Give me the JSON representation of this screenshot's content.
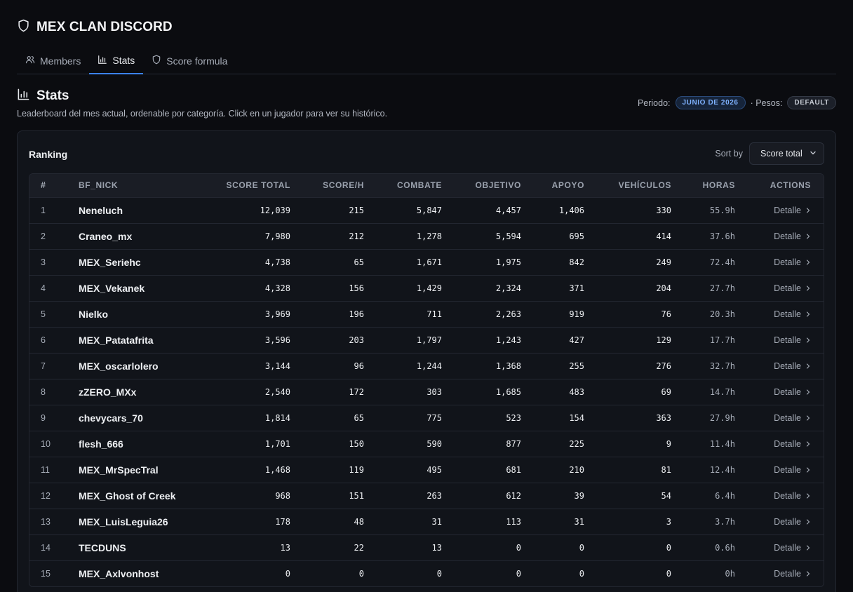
{
  "app": {
    "title": "MEX CLAN DISCORD",
    "icon": "shield-icon"
  },
  "tabs": [
    {
      "label": "Members",
      "icon": "users-icon",
      "active": false
    },
    {
      "label": "Stats",
      "icon": "bar-chart-icon",
      "active": true
    },
    {
      "label": "Score formula",
      "icon": "shield-icon",
      "active": false
    }
  ],
  "section": {
    "title": "Stats",
    "subtitle": "Leaderboard del mes actual, ordenable por categoría. Click en un jugador para ver su histórico.",
    "period_label": "Periodo:",
    "period_value": "JUNIO DE 2026",
    "weights_label": "· Pesos:",
    "weights_value": "DEFAULT"
  },
  "ranking": {
    "title": "Ranking",
    "sort_label": "Sort by",
    "sort_value": "Score total",
    "columns": [
      "#",
      "BF_NICK",
      "SCORE TOTAL",
      "SCORE/H",
      "COMBATE",
      "OBJETIVO",
      "APOYO",
      "VEHÍCULOS",
      "HORAS",
      "ACTIONS"
    ],
    "detail_label": "Detalle",
    "rows": [
      {
        "rank": "1",
        "nick": "Neneluch",
        "score": "12,039",
        "sh": "215",
        "comb": "5,847",
        "obj": "4,457",
        "apoyo": "1,406",
        "veh": "330",
        "horas": "55.9h"
      },
      {
        "rank": "2",
        "nick": "Craneo_mx",
        "score": "7,980",
        "sh": "212",
        "comb": "1,278",
        "obj": "5,594",
        "apoyo": "695",
        "veh": "414",
        "horas": "37.6h"
      },
      {
        "rank": "3",
        "nick": "MEX_Seriehc",
        "score": "4,738",
        "sh": "65",
        "comb": "1,671",
        "obj": "1,975",
        "apoyo": "842",
        "veh": "249",
        "horas": "72.4h"
      },
      {
        "rank": "4",
        "nick": "MEX_Vekanek",
        "score": "4,328",
        "sh": "156",
        "comb": "1,429",
        "obj": "2,324",
        "apoyo": "371",
        "veh": "204",
        "horas": "27.7h"
      },
      {
        "rank": "5",
        "nick": "Nielko",
        "score": "3,969",
        "sh": "196",
        "comb": "711",
        "obj": "2,263",
        "apoyo": "919",
        "veh": "76",
        "horas": "20.3h"
      },
      {
        "rank": "6",
        "nick": "MEX_Patatafrita",
        "score": "3,596",
        "sh": "203",
        "comb": "1,797",
        "obj": "1,243",
        "apoyo": "427",
        "veh": "129",
        "horas": "17.7h"
      },
      {
        "rank": "7",
        "nick": "MEX_oscarlolero",
        "score": "3,144",
        "sh": "96",
        "comb": "1,244",
        "obj": "1,368",
        "apoyo": "255",
        "veh": "276",
        "horas": "32.7h"
      },
      {
        "rank": "8",
        "nick": "zZERO_MXx",
        "score": "2,540",
        "sh": "172",
        "comb": "303",
        "obj": "1,685",
        "apoyo": "483",
        "veh": "69",
        "horas": "14.7h"
      },
      {
        "rank": "9",
        "nick": "chevycars_70",
        "score": "1,814",
        "sh": "65",
        "comb": "775",
        "obj": "523",
        "apoyo": "154",
        "veh": "363",
        "horas": "27.9h"
      },
      {
        "rank": "10",
        "nick": "flesh_666",
        "score": "1,701",
        "sh": "150",
        "comb": "590",
        "obj": "877",
        "apoyo": "225",
        "veh": "9",
        "horas": "11.4h"
      },
      {
        "rank": "11",
        "nick": "MEX_MrSpecTral",
        "score": "1,468",
        "sh": "119",
        "comb": "495",
        "obj": "681",
        "apoyo": "210",
        "veh": "81",
        "horas": "12.4h"
      },
      {
        "rank": "12",
        "nick": "MEX_Ghost of Creek",
        "score": "968",
        "sh": "151",
        "comb": "263",
        "obj": "612",
        "apoyo": "39",
        "veh": "54",
        "horas": "6.4h"
      },
      {
        "rank": "13",
        "nick": "MEX_LuisLeguia26",
        "score": "178",
        "sh": "48",
        "comb": "31",
        "obj": "113",
        "apoyo": "31",
        "veh": "3",
        "horas": "3.7h"
      },
      {
        "rank": "14",
        "nick": "TECDUNS",
        "score": "13",
        "sh": "22",
        "comb": "13",
        "obj": "0",
        "apoyo": "0",
        "veh": "0",
        "horas": "0.6h"
      },
      {
        "rank": "15",
        "nick": "MEX_Axlvonhost",
        "score": "0",
        "sh": "0",
        "comb": "0",
        "obj": "0",
        "apoyo": "0",
        "veh": "0",
        "horas": "0h"
      }
    ]
  }
}
